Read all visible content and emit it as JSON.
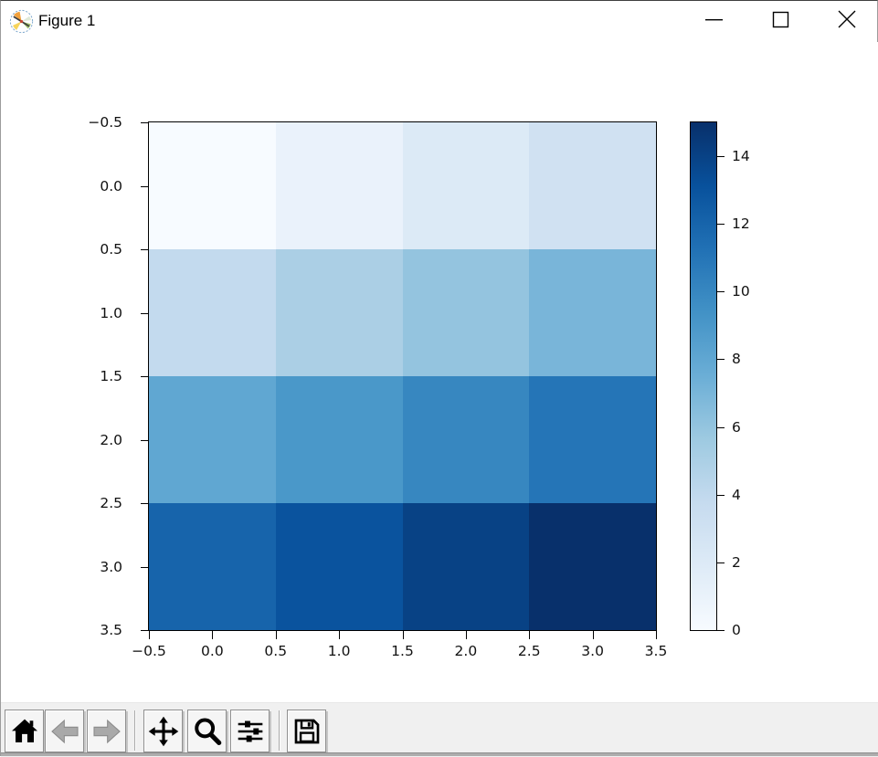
{
  "window": {
    "title": "Figure 1",
    "app_icon": "matplotlib-logo-icon",
    "controls": [
      {
        "id": "minimize",
        "icon": "minimize-icon"
      },
      {
        "id": "maximize",
        "icon": "maximize-icon"
      },
      {
        "id": "close",
        "icon": "close-icon"
      }
    ]
  },
  "chart_data": {
    "type": "heatmap",
    "title": "",
    "xlabel": "",
    "ylabel": "",
    "colormap": "Blues",
    "grid": false,
    "values": [
      [
        0,
        1,
        2,
        3
      ],
      [
        4,
        5,
        6,
        7
      ],
      [
        8,
        9,
        10,
        11
      ],
      [
        12,
        13,
        14,
        15
      ]
    ],
    "cell_colors": [
      [
        "#f7fbff",
        "#eaf2fb",
        "#dceaf6",
        "#d0e1f2"
      ],
      [
        "#c3daee",
        "#abcfe5",
        "#94c4df",
        "#79b5d9"
      ],
      [
        "#60a7d2",
        "#4a98c9",
        "#3787c0",
        "#2575b7"
      ],
      [
        "#1764ab",
        "#0a539e",
        "#084285",
        "#08306b"
      ]
    ],
    "xlim": [
      -0.5,
      3.5
    ],
    "ylim_top_to_bottom": [
      -0.5,
      3.5
    ],
    "x_ticks": {
      "values": [
        -0.5,
        0.0,
        0.5,
        1.0,
        1.5,
        2.0,
        2.5,
        3.0,
        3.5
      ],
      "labels": [
        "−0.5",
        "0.0",
        "0.5",
        "1.0",
        "1.5",
        "2.0",
        "2.5",
        "3.0",
        "3.5"
      ]
    },
    "y_ticks": {
      "values": [
        -0.5,
        0.0,
        0.5,
        1.0,
        1.5,
        2.0,
        2.5,
        3.0,
        3.5
      ],
      "labels": [
        "−0.5",
        "0.0",
        "0.5",
        "1.0",
        "1.5",
        "2.0",
        "2.5",
        "3.0",
        "3.5"
      ]
    },
    "colorbar": {
      "vmin": 0,
      "vmax": 15,
      "tick_values": [
        0,
        2,
        4,
        6,
        8,
        10,
        12,
        14
      ],
      "tick_labels": [
        "0",
        "2",
        "4",
        "6",
        "8",
        "10",
        "12",
        "14"
      ],
      "gradient_stops": [
        "#f7fbff",
        "#deebf7",
        "#c6dbef",
        "#9ecae1",
        "#6baed6",
        "#4292c6",
        "#2171b5",
        "#08519c",
        "#08306b"
      ]
    }
  },
  "toolbar": {
    "buttons": [
      {
        "id": "home",
        "icon": "home-icon",
        "enabled": true
      },
      {
        "id": "back",
        "icon": "back-arrow-icon",
        "enabled": false
      },
      {
        "id": "forward",
        "icon": "forward-arrow-icon",
        "enabled": false
      },
      {
        "id": "pan",
        "icon": "pan-arrows-icon",
        "enabled": true
      },
      {
        "id": "zoom",
        "icon": "zoom-magnifier-icon",
        "enabled": true
      },
      {
        "id": "configure-subplots",
        "icon": "sliders-icon",
        "enabled": true
      },
      {
        "id": "save",
        "icon": "save-floppy-icon",
        "enabled": true
      }
    ]
  }
}
